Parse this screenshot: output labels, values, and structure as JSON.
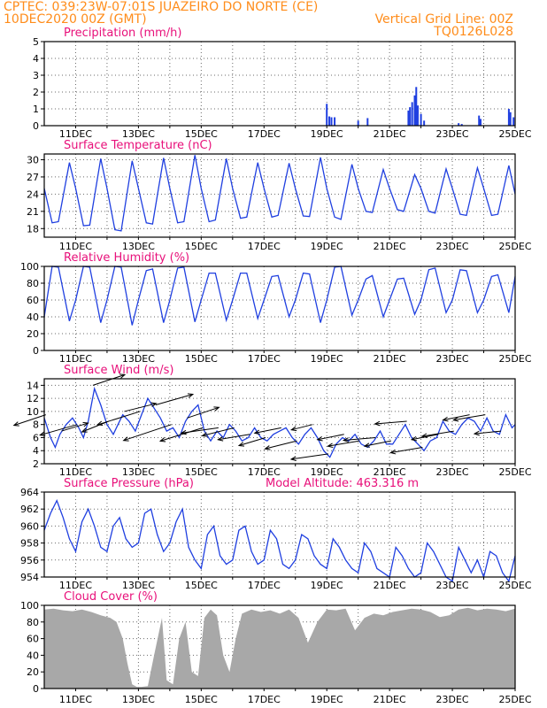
{
  "header": {
    "line1": "CPTEC:  039:23W-07:01S  JUAZEIRO DO NORTE (CE)",
    "line2": "10DEC2020 00Z (GMT)",
    "grid_note": "Vertical Grid Line: 00Z",
    "code": "TQ0126L028"
  },
  "colors": {
    "header": "#ff8c1a",
    "panel_title": "#e8107a",
    "series": "#1f3fe0",
    "wind_arrow": "#000000",
    "cloud_fill": "#a8a8a8",
    "grid": "#6a6a6a"
  },
  "x_axis": {
    "range_days": [
      10,
      25
    ],
    "tick_labels": [
      "11DEC",
      "13DEC",
      "15DEC",
      "17DEC",
      "19DEC",
      "21DEC",
      "23DEC",
      "25DEC"
    ]
  },
  "chart_data": [
    {
      "type": "bar",
      "title": "Precipitation (mm/h)",
      "ylim": [
        0,
        5
      ],
      "y_ticks": [
        "0",
        "1",
        "2",
        "3",
        "4",
        "5"
      ],
      "x": [
        19.0,
        19.08,
        19.15,
        19.25,
        20.0,
        20.3,
        21.6,
        21.65,
        21.72,
        21.8,
        21.85,
        21.9,
        22.0,
        22.1,
        23.2,
        23.3,
        23.85,
        23.9,
        24.8,
        24.85,
        24.95
      ],
      "values": [
        1.3,
        0.55,
        0.5,
        0.5,
        0.3,
        0.45,
        0.9,
        1.1,
        1.4,
        1.8,
        2.3,
        1.2,
        0.7,
        0.3,
        0.15,
        0.1,
        0.6,
        0.4,
        1.0,
        0.8,
        0.5
      ]
    },
    {
      "type": "line",
      "title": "Surface Temperature (nC)",
      "ylim": [
        16.5,
        31
      ],
      "y_ticks": [
        "18",
        "21",
        "24",
        "27",
        "30"
      ],
      "x": [
        10.0,
        10.25,
        10.45,
        10.8,
        11.0,
        11.25,
        11.45,
        11.8,
        12.0,
        12.25,
        12.45,
        12.8,
        13.0,
        13.25,
        13.45,
        13.8,
        14.0,
        14.25,
        14.45,
        14.8,
        15.0,
        15.25,
        15.45,
        15.8,
        16.0,
        16.25,
        16.45,
        16.8,
        17.0,
        17.25,
        17.45,
        17.8,
        18.0,
        18.25,
        18.45,
        18.8,
        19.0,
        19.25,
        19.45,
        19.8,
        20.0,
        20.25,
        20.45,
        20.8,
        21.0,
        21.25,
        21.45,
        21.8,
        22.0,
        22.25,
        22.45,
        22.8,
        23.0,
        23.25,
        23.45,
        23.8,
        24.0,
        24.25,
        24.45,
        24.8,
        25.0
      ],
      "values": [
        25,
        19,
        19.2,
        29.5,
        25,
        18.5,
        18.6,
        30.2,
        25,
        17.8,
        17.6,
        29.8,
        25,
        19,
        18.8,
        30.3,
        25,
        19,
        19.2,
        30.8,
        25,
        19.2,
        19.5,
        30.2,
        25,
        19.8,
        20,
        29.5,
        25,
        20,
        20.3,
        29.4,
        25,
        20.2,
        20.1,
        30.4,
        25,
        20,
        19.6,
        29.2,
        25,
        21,
        20.8,
        28.3,
        25,
        21.3,
        21,
        27.4,
        25,
        21,
        20.7,
        28.4,
        25,
        20.5,
        20.3,
        28.6,
        25,
        20.3,
        20.5,
        29,
        24
      ]
    },
    {
      "type": "line",
      "title": "Relative Humidity (%)",
      "ylim": [
        0,
        100
      ],
      "y_ticks": [
        "0",
        "20",
        "40",
        "60",
        "80",
        "100"
      ],
      "x": [
        10.0,
        10.25,
        10.45,
        10.8,
        11.0,
        11.25,
        11.45,
        11.8,
        12.0,
        12.25,
        12.45,
        12.8,
        13.0,
        13.25,
        13.45,
        13.8,
        14.0,
        14.25,
        14.45,
        14.8,
        15.0,
        15.25,
        15.45,
        15.8,
        16.0,
        16.25,
        16.45,
        16.8,
        17.0,
        17.25,
        17.45,
        17.8,
        18.0,
        18.25,
        18.45,
        18.8,
        19.0,
        19.25,
        19.45,
        19.8,
        20.0,
        20.25,
        20.45,
        20.8,
        21.0,
        21.25,
        21.45,
        21.8,
        22.0,
        22.25,
        22.45,
        22.8,
        23.0,
        23.25,
        23.45,
        23.8,
        24.0,
        24.25,
        24.45,
        24.8,
        25.0
      ],
      "values": [
        40,
        100,
        99,
        35,
        60,
        100,
        99,
        33,
        60,
        100,
        99,
        30,
        60,
        95,
        97,
        33,
        60,
        98,
        99,
        34,
        60,
        92,
        92,
        36,
        60,
        92,
        92,
        38,
        60,
        88,
        89,
        40,
        60,
        92,
        91,
        33,
        60,
        99,
        100,
        42,
        60,
        85,
        89,
        40,
        60,
        85,
        86,
        43,
        60,
        96,
        98,
        45,
        60,
        96,
        95,
        45,
        60,
        88,
        90,
        45,
        88
      ]
    },
    {
      "type": "line",
      "title": "Surface Wind (m/s)",
      "ylim": [
        2,
        15
      ],
      "y_ticks": [
        "2",
        "4",
        "6",
        "8",
        "10",
        "12",
        "14"
      ],
      "x": [
        10.0,
        10.2,
        10.35,
        10.5,
        10.7,
        10.9,
        11.1,
        11.25,
        11.4,
        11.6,
        11.8,
        12.0,
        12.2,
        12.35,
        12.5,
        12.7,
        12.9,
        13.1,
        13.3,
        13.5,
        13.7,
        13.9,
        14.1,
        14.3,
        14.5,
        14.7,
        14.9,
        15.1,
        15.3,
        15.5,
        15.7,
        15.9,
        16.1,
        16.3,
        16.5,
        16.7,
        16.9,
        17.1,
        17.3,
        17.5,
        17.7,
        17.9,
        18.1,
        18.3,
        18.5,
        18.7,
        18.9,
        19.1,
        19.3,
        19.5,
        19.7,
        19.9,
        20.1,
        20.3,
        20.5,
        20.7,
        20.9,
        21.1,
        21.3,
        21.5,
        21.7,
        21.9,
        22.1,
        22.3,
        22.5,
        22.7,
        22.9,
        23.1,
        23.3,
        23.5,
        23.7,
        23.9,
        24.1,
        24.3,
        24.5,
        24.7,
        24.9,
        25.0
      ],
      "values": [
        9,
        6,
        4.5,
        6.5,
        8,
        9,
        7.5,
        6,
        8.5,
        13.5,
        11,
        8,
        6.5,
        8,
        9.5,
        8.5,
        7,
        9.5,
        12,
        10.5,
        9,
        7,
        7.5,
        6,
        8.5,
        10,
        11,
        7,
        5.5,
        7,
        6,
        8,
        7,
        5.5,
        6,
        7.5,
        6,
        5.5,
        6.5,
        7,
        7.5,
        6,
        5,
        6.5,
        7.5,
        6,
        4,
        3,
        5,
        6,
        5.5,
        6.5,
        5,
        4.5,
        5.5,
        7,
        5,
        5,
        6.5,
        8,
        6,
        5,
        4,
        5.5,
        6,
        8.5,
        7,
        6.5,
        8,
        9,
        8.5,
        7,
        9,
        7,
        6.5,
        9.5,
        7.5,
        8
      ]
    },
    {
      "type": "line",
      "title": "Surface Pressure (hPa)",
      "annotation": "Model Altitude: 463.316 m",
      "ylim": [
        954,
        964
      ],
      "y_ticks": [
        "954",
        "956",
        "958",
        "960",
        "962",
        "964"
      ],
      "x": [
        10.0,
        10.2,
        10.4,
        10.6,
        10.8,
        11.0,
        11.2,
        11.4,
        11.6,
        11.8,
        12.0,
        12.2,
        12.4,
        12.6,
        12.8,
        13.0,
        13.2,
        13.4,
        13.6,
        13.8,
        14.0,
        14.2,
        14.4,
        14.6,
        14.8,
        15.0,
        15.2,
        15.4,
        15.6,
        15.8,
        16.0,
        16.2,
        16.4,
        16.6,
        16.8,
        17.0,
        17.2,
        17.4,
        17.6,
        17.8,
        18.0,
        18.2,
        18.4,
        18.6,
        18.8,
        19.0,
        19.2,
        19.4,
        19.6,
        19.8,
        20.0,
        20.2,
        20.4,
        20.6,
        20.8,
        21.0,
        21.2,
        21.4,
        21.6,
        21.8,
        22.0,
        22.2,
        22.4,
        22.6,
        22.8,
        23.0,
        23.2,
        23.4,
        23.6,
        23.8,
        24.0,
        24.2,
        24.4,
        24.6,
        24.8,
        25.0
      ],
      "values": [
        959.5,
        961.5,
        963,
        961,
        958.5,
        957,
        960.5,
        962,
        960,
        957.5,
        957,
        960,
        961,
        958.5,
        957.5,
        958,
        961.5,
        962,
        959,
        957,
        958,
        960.5,
        962,
        957.5,
        956,
        955,
        959,
        960,
        956.5,
        955.5,
        956,
        959.5,
        960,
        957,
        955.5,
        956,
        959.5,
        958.5,
        955.5,
        955,
        956,
        959,
        958.5,
        956.5,
        955.5,
        955,
        958.5,
        957.5,
        956,
        955,
        954.5,
        958,
        957,
        955,
        954.5,
        954,
        957.5,
        956.5,
        955,
        954,
        954.5,
        958,
        957,
        955.5,
        954,
        953.5,
        957.5,
        956,
        954.5,
        956,
        954,
        957,
        956.5,
        954.5,
        953.5,
        956.5
      ]
    },
    {
      "type": "area",
      "title": "Cloud Cover (%)",
      "ylim": [
        0,
        100
      ],
      "y_ticks": [
        "0",
        "20",
        "40",
        "60",
        "80",
        "100"
      ],
      "x": [
        10.0,
        10.3,
        10.6,
        10.9,
        11.2,
        11.5,
        11.8,
        12.1,
        12.3,
        12.5,
        12.65,
        12.8,
        12.95,
        13.1,
        13.3,
        13.5,
        13.75,
        13.9,
        14.1,
        14.3,
        14.5,
        14.7,
        14.9,
        15.1,
        15.3,
        15.5,
        15.7,
        15.9,
        16.1,
        16.3,
        16.6,
        16.9,
        17.2,
        17.5,
        17.8,
        18.1,
        18.4,
        18.7,
        19.0,
        19.3,
        19.6,
        19.9,
        20.2,
        20.5,
        20.8,
        21.1,
        21.4,
        21.7,
        22.0,
        22.3,
        22.6,
        22.9,
        23.2,
        23.5,
        23.8,
        24.1,
        24.4,
        24.7,
        25.0
      ],
      "values": [
        95,
        96,
        94,
        93,
        95,
        92,
        88,
        85,
        80,
        60,
        30,
        5,
        2,
        2,
        3,
        40,
        85,
        10,
        5,
        60,
        80,
        20,
        15,
        85,
        95,
        88,
        40,
        20,
        60,
        90,
        95,
        92,
        94,
        90,
        95,
        85,
        55,
        80,
        95,
        94,
        96,
        70,
        85,
        90,
        88,
        92,
        94,
        96,
        95,
        92,
        86,
        88,
        95,
        97,
        94,
        96,
        95,
        93,
        96
      ]
    }
  ],
  "wind_vectors": {
    "x": [
      10.05,
      10.55,
      11.05,
      11.55,
      12.05,
      12.55,
      13.05,
      13.55,
      14.05,
      14.55,
      15.05,
      15.55,
      16.05,
      16.55,
      17.05,
      17.55,
      18.05,
      18.55,
      19.05,
      19.55,
      20.05,
      20.55,
      21.05,
      21.55,
      22.05,
      22.55,
      23.05,
      23.55,
      24.05,
      24.55
    ],
    "u": [
      -6,
      5,
      -7,
      6,
      -5,
      6,
      -8,
      7,
      -9,
      6,
      -8,
      -7,
      -6,
      -6,
      -5,
      -5,
      -6,
      -4,
      -7,
      -5,
      -6,
      -6,
      -5,
      -6,
      -6,
      -5,
      -6,
      -5,
      -6,
      -5
    ],
    "v": [
      -2,
      1.5,
      -2,
      2,
      -2,
      1.5,
      -2.5,
      2,
      -3,
      2,
      -2.5,
      -1,
      -1.5,
      -1,
      -1.5,
      -1,
      -1.5,
      -1,
      -1,
      -1,
      -1,
      -0.5,
      -1,
      -0.5,
      -1,
      -1,
      -1,
      -1,
      -1,
      -0.5
    ]
  }
}
